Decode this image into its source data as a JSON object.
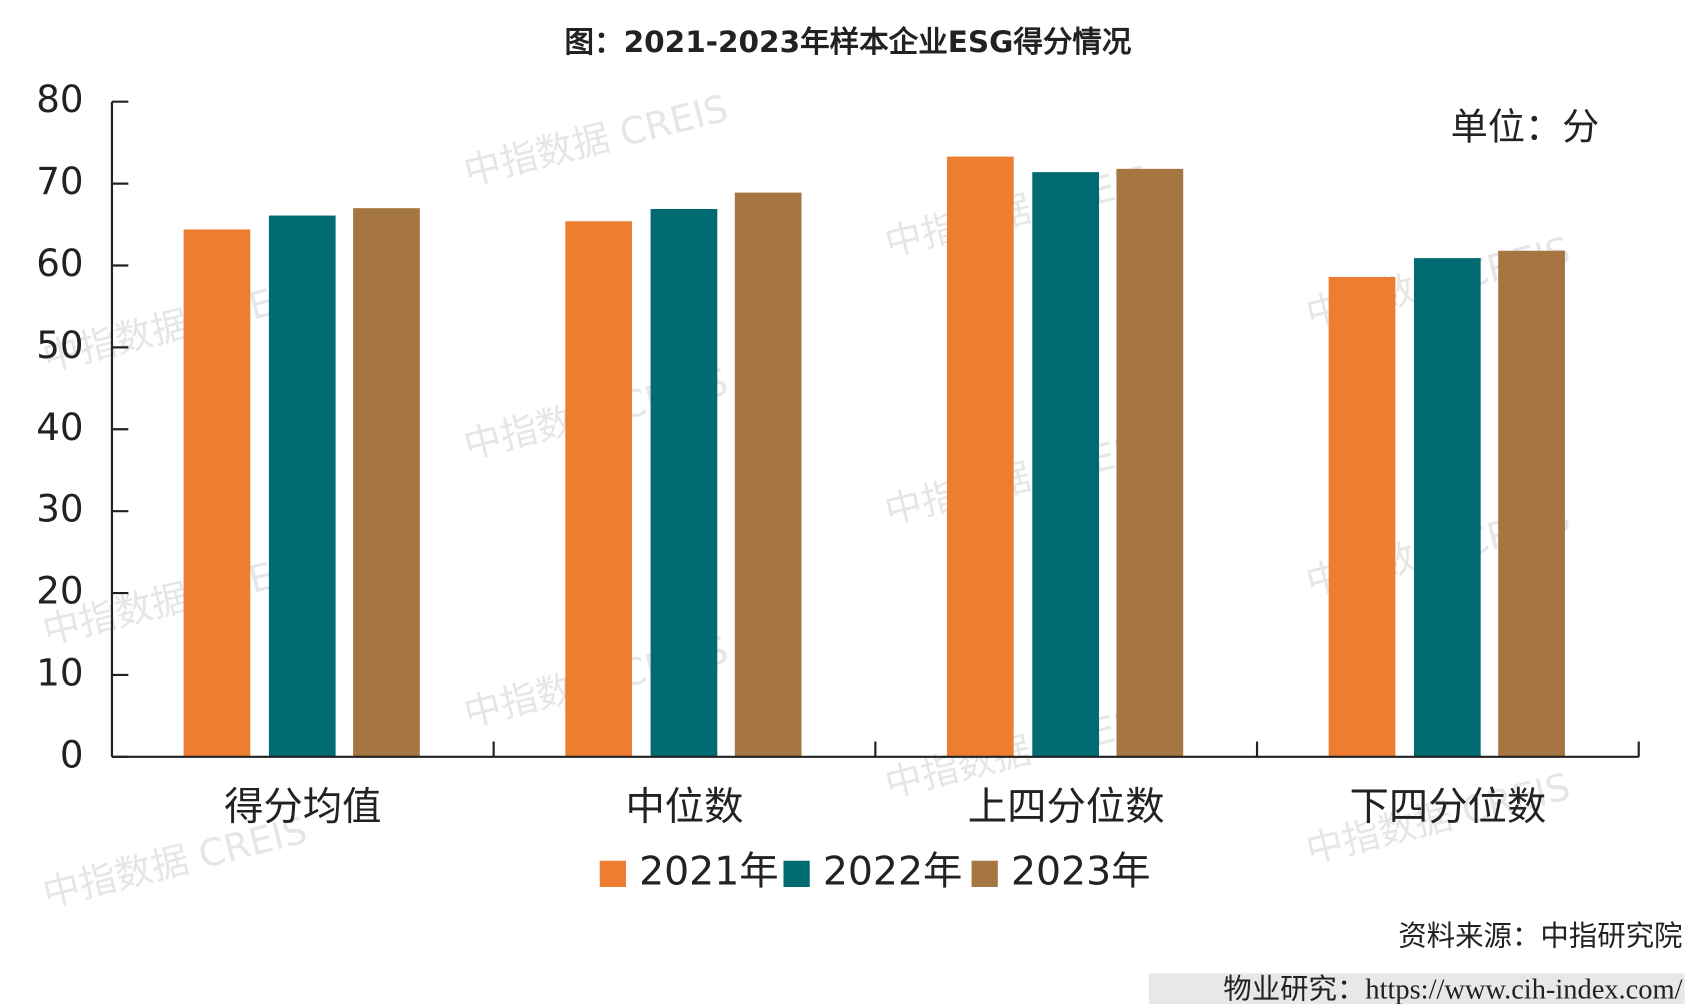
{
  "chart_data": {
    "type": "bar",
    "title": "图：2021-2023年样本企业ESG得分情况",
    "unit_note": "单位：分",
    "watermark": "中指数据 CREIS",
    "source": "资料来源：中指研究院",
    "footer": "物业研究：https://www.cih-index.com/",
    "categories": [
      "得分均值",
      "中位数",
      "上四分位数",
      "下四分位数"
    ],
    "series": [
      {
        "name": "2021年",
        "color": "#ed7d31",
        "values": [
          64.4,
          65.4,
          73.3,
          58.6
        ]
      },
      {
        "name": "2022年",
        "color": "#006b73",
        "values": [
          66.1,
          66.9,
          71.4,
          60.9
        ]
      },
      {
        "name": "2023年",
        "color": "#a57641",
        "values": [
          67.0,
          68.9,
          71.8,
          61.8
        ]
      }
    ],
    "ylim": [
      0,
      80
    ],
    "yticks": [
      0,
      10,
      20,
      30,
      40,
      50,
      60,
      70,
      80
    ],
    "legend": "bottom"
  }
}
